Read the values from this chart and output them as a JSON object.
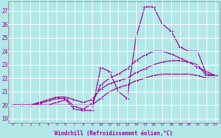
{
  "x_ticks": [
    0,
    1,
    2,
    3,
    4,
    5,
    6,
    7,
    8,
    9,
    10,
    11,
    12,
    13,
    14,
    15,
    16,
    17,
    18,
    19,
    20,
    21,
    22,
    23
  ],
  "line1": [
    20.0,
    20.0,
    20.0,
    20.0,
    20.0,
    20.2,
    20.4,
    19.7,
    19.6,
    19.6,
    22.8,
    22.5,
    21.0,
    20.5,
    25.0,
    27.3,
    27.3,
    26.0,
    25.5,
    24.3,
    24.0,
    24.0,
    22.3,
    22.2
  ],
  "line2": [
    20.0,
    20.0,
    20.0,
    20.1,
    20.3,
    20.5,
    20.5,
    19.9,
    19.7,
    20.1,
    21.5,
    22.0,
    22.3,
    22.7,
    23.3,
    23.7,
    24.0,
    24.0,
    23.8,
    23.5,
    23.2,
    22.8,
    22.5,
    22.2
  ],
  "line3": [
    20.0,
    20.0,
    20.0,
    20.2,
    20.4,
    20.6,
    20.6,
    20.4,
    20.2,
    20.4,
    21.2,
    21.6,
    21.8,
    22.0,
    22.4,
    22.7,
    23.0,
    23.2,
    23.3,
    23.3,
    23.2,
    23.0,
    22.2,
    22.2
  ],
  "line4": [
    20.0,
    20.0,
    20.0,
    20.0,
    20.0,
    20.0,
    20.0,
    20.0,
    20.0,
    20.0,
    20.5,
    21.0,
    21.3,
    21.5,
    21.8,
    22.0,
    22.2,
    22.3,
    22.3,
    22.3,
    22.3,
    22.2,
    22.0,
    22.0
  ],
  "color": "#990099",
  "bg_color": "#b3e8e8",
  "grid_color": "#ffffff",
  "ylabel_vals": [
    19,
    20,
    21,
    22,
    23,
    24,
    25,
    26,
    27
  ],
  "ylim": [
    18.7,
    27.7
  ],
  "xlabel": "Windchill (Refroidissement éolien,°C)",
  "marker": "+",
  "marker_size": 4,
  "line_width": 0.9
}
